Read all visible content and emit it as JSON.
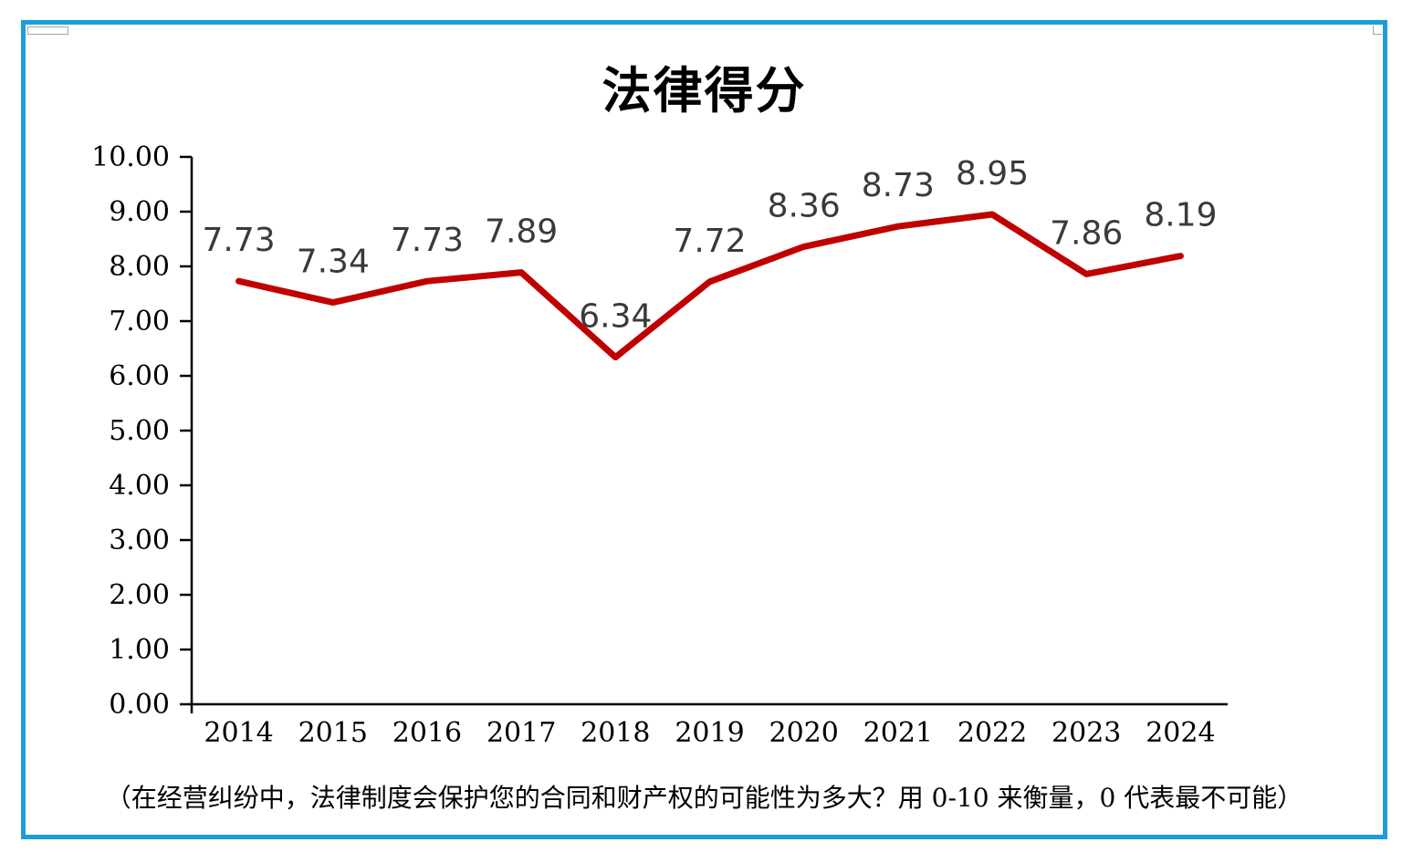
{
  "frame": {
    "border_color": "#1C9DD9",
    "handles": [
      "top-left-handle",
      "top-right-handle"
    ]
  },
  "chart_data": {
    "type": "line",
    "title": "法律得分",
    "categories": [
      "2014",
      "2015",
      "2016",
      "2017",
      "2018",
      "2019",
      "2020",
      "2021",
      "2022",
      "2023",
      "2024"
    ],
    "values": [
      7.73,
      7.34,
      7.73,
      7.89,
      6.34,
      7.72,
      8.36,
      8.73,
      8.95,
      7.86,
      8.19
    ],
    "line_color": "#C00000",
    "data_label_color": "#3a3a3a",
    "axis_color": "#000000",
    "ylim": [
      0,
      10
    ],
    "y_tick_step": 1,
    "y_tick_decimals": 2,
    "data_label_decimals": 2,
    "grid": false,
    "legend_position": "none",
    "data_label_position": "above",
    "caption": "（在经营纠纷中，法律制度会保护您的合同和财产权的可能性为多大？用 0-10 来衡量，0 代表最不可能）"
  }
}
